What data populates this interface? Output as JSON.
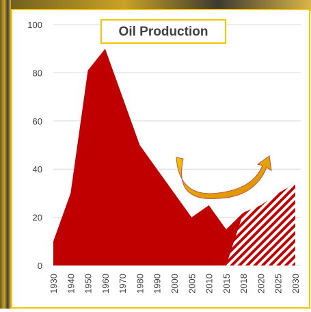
{
  "chart_data": {
    "type": "area",
    "title": "Oil Production",
    "categories": [
      "1930",
      "1940",
      "1950",
      "1960",
      "1970",
      "1980",
      "1990",
      "2000",
      "2005",
      "2010",
      "2015",
      "2018",
      "2020",
      "2025",
      "2030"
    ],
    "series": [
      {
        "color": "#c00000",
        "values": [
          10,
          30,
          81,
          90,
          70,
          50,
          40,
          30,
          20,
          25,
          15,
          22,
          null,
          null,
          null
        ]
      },
      {
        "color": "#c00000",
        "hatched": true,
        "values": [
          null,
          null,
          null,
          null,
          null,
          null,
          null,
          null,
          null,
          null,
          0,
          22,
          25,
          30,
          34
        ]
      }
    ],
    "ylim": [
      0,
      100
    ],
    "yticks": [
      0,
      20,
      40,
      60,
      80,
      100
    ],
    "grid": true
  }
}
